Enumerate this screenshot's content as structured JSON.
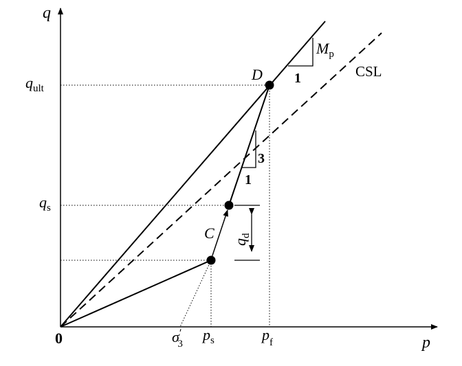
{
  "axes": {
    "x_label": "p",
    "y_label": "q",
    "origin_label": "0"
  },
  "y_ticks": {
    "q_ult": {
      "main": "q",
      "sub": "ult"
    },
    "q_s": {
      "main": "q",
      "sub": "s"
    }
  },
  "x_ticks": {
    "sigma3": {
      "main": "σ",
      "prime": "′",
      "sub": "3"
    },
    "p_s": {
      "main": "p",
      "sub": "s"
    },
    "p_f": {
      "main": "p",
      "sub": "f"
    }
  },
  "points": {
    "D": "D",
    "C": "C"
  },
  "lines": {
    "csl": "CSL"
  },
  "slope_mp": {
    "rise": {
      "main": "M",
      "sub": "p"
    },
    "run": "1"
  },
  "slope_3_1": {
    "rise": "3",
    "run": "1"
  },
  "qd": {
    "main": "q",
    "sub": "d"
  },
  "colors": {
    "ink": "#000000",
    "background": "#ffffff"
  }
}
